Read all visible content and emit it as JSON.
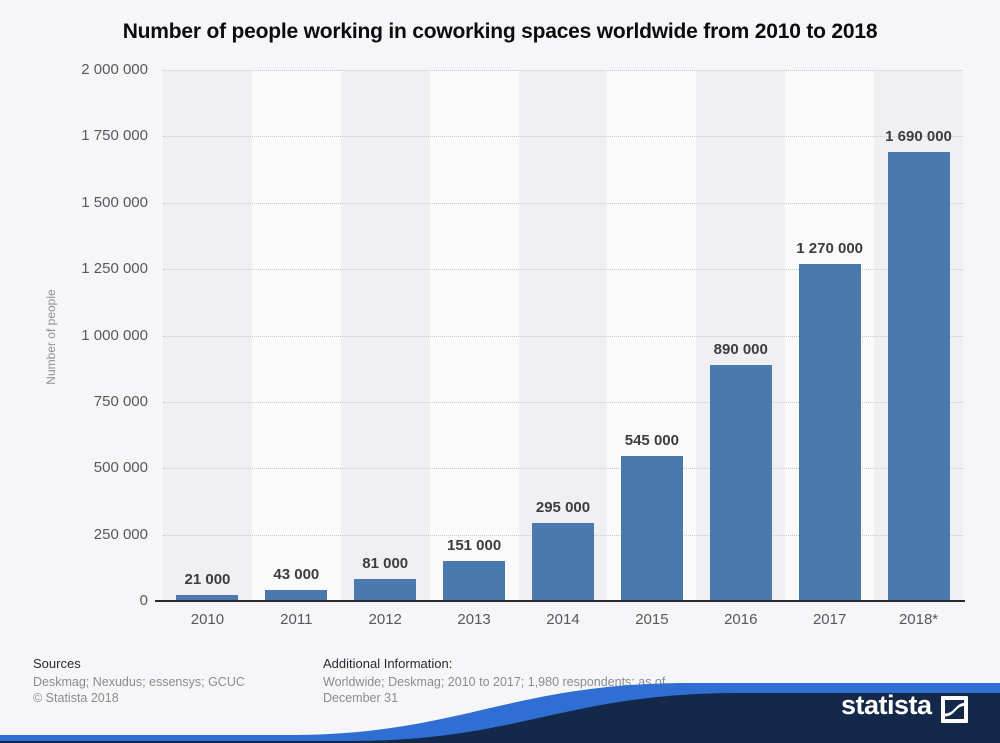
{
  "title": "Number of people working in coworking spaces worldwide from 2010 to 2018",
  "chart_data": {
    "type": "bar",
    "title": "Number of people working in coworking spaces worldwide from 2010 to 2018",
    "categories": [
      "2010",
      "2011",
      "2012",
      "2013",
      "2014",
      "2015",
      "2016",
      "2017",
      "2018*"
    ],
    "values": [
      21000,
      43000,
      81000,
      151000,
      295000,
      545000,
      890000,
      1270000,
      1690000
    ],
    "value_labels": [
      "21 000",
      "43 000",
      "81 000",
      "151 000",
      "295 000",
      "545 000",
      "890 000",
      "1 270 000",
      "1 690 000"
    ],
    "xlabel": "",
    "ylabel": "Number of people",
    "ylim": [
      0,
      2000000
    ],
    "ytick_interval": 250000,
    "ytick_labels": [
      "0",
      "250 000",
      "500 000",
      "750 000",
      "1 000 000",
      "1 250 000",
      "1 500 000",
      "1 750 000",
      "2 000 000"
    ],
    "grid": "horizontal dotted",
    "legend": "none",
    "bar_color": "#4a79ae",
    "band_colors": [
      "#f0f0f3",
      "#fafafb"
    ]
  },
  "footer": {
    "sources_label": "Sources",
    "sources_text": "Deskmag; Nexudus; essensys; GCUC",
    "copyright": "© Statista 2018",
    "additional_info_label": "Additional Information:",
    "additional_info_text": "Worldwide; Deskmag; 2010 to 2017; 1,980 respondents; as of December 31"
  },
  "branding": {
    "logo_text": "statista",
    "brand_navy": "#14294a",
    "brand_blue": "#2f6ed2"
  }
}
